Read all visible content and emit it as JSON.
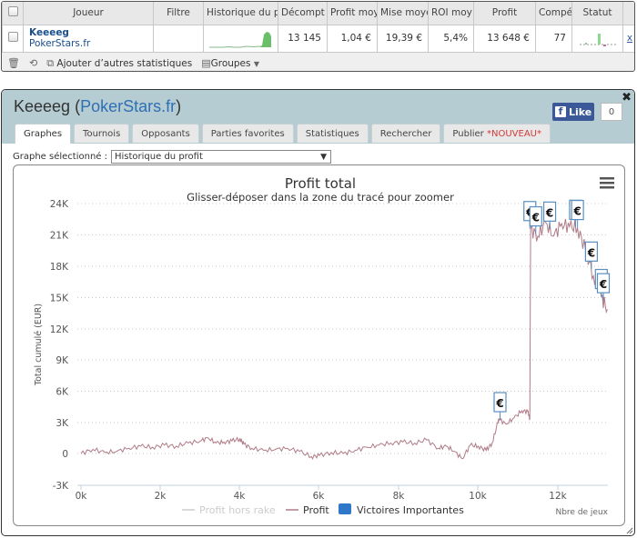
{
  "stats_table": {
    "columns": [
      "Joueur",
      "Filtre",
      "Historique du p",
      "Décompt",
      "Profit moy",
      "Mise moye",
      "ROI moy",
      "Profit",
      "Compé",
      "Statut"
    ],
    "row": {
      "player": "Keeeeg",
      "site": "PokerStars.fr",
      "filter": "",
      "count": "13 145",
      "avg_profit": "1,04 €",
      "avg_stake": "19,39 €",
      "avg_roi": "5,4%",
      "profit": "13 648 €",
      "competence": "77",
      "remove": "x"
    }
  },
  "toolbar": {
    "add_stats_label": "Ajouter d’autres statistiques",
    "groups_label": "Groupes"
  },
  "dialog": {
    "title_player": "Keeeeg",
    "title_open": " (",
    "title_site": "PokerStars.fr",
    "title_close": ")",
    "fb_like_label": "Like",
    "fb_like_count": "0",
    "close_label": "✖",
    "tabs": [
      {
        "label": "Graphes",
        "active": true
      },
      {
        "label": "Tournois"
      },
      {
        "label": "Opposants"
      },
      {
        "label": "Parties favorites"
      },
      {
        "label": "Statistiques"
      },
      {
        "label": "Rechercher"
      },
      {
        "label": "Publier ",
        "badge": "*NOUVEAU*"
      }
    ],
    "graph_select_label": "Graphe sélectionné :",
    "graph_select_value": "Historique du profit"
  },
  "chart_data": {
    "type": "line",
    "title": "Profit total",
    "subtitle": "Glisser-déposer dans la zone du tracé pour zoomer",
    "xlabel": "Nbre de jeux",
    "ylabel": "Total cumulé (EUR)",
    "x_ticks": [
      "0k",
      "2k",
      "4k",
      "6k",
      "8k",
      "10k",
      "12k"
    ],
    "y_ticks": [
      "24K",
      "21K",
      "18K",
      "15K",
      "12K",
      "9K",
      "6K",
      "3K",
      "0",
      "-3K"
    ],
    "ylim": [
      -3000,
      24000
    ],
    "xlim": [
      0,
      13300
    ],
    "grid": true,
    "legend": [
      "Profit hors rake",
      "Profit",
      "Victoires Importantes"
    ],
    "legend_position": "bottom",
    "series": [
      {
        "name": "Profit",
        "color": "#b07a86",
        "x": [
          0,
          300,
          600,
          900,
          1200,
          1500,
          1800,
          2100,
          2400,
          2700,
          3000,
          3200,
          3400,
          3600,
          3800,
          4000,
          4100,
          4300,
          4600,
          4900,
          5200,
          5500,
          5800,
          6000,
          6300,
          6600,
          6900,
          7200,
          7500,
          7800,
          8100,
          8400,
          8700,
          9000,
          9200,
          9400,
          9600,
          9800,
          10000,
          10200,
          10350,
          10500,
          10520,
          10700,
          10900,
          11100,
          11250,
          11300,
          11320,
          11500,
          11700,
          11900,
          12100,
          12300,
          12500,
          12700,
          12900,
          13100,
          13250
        ],
        "y": [
          0,
          400,
          100,
          200,
          500,
          700,
          600,
          800,
          700,
          1000,
          1200,
          1500,
          1000,
          1100,
          1200,
          1400,
          900,
          500,
          300,
          400,
          500,
          200,
          -300,
          -200,
          100,
          0,
          300,
          600,
          800,
          1000,
          1100,
          1000,
          1300,
          500,
          700,
          200,
          -500,
          800,
          700,
          300,
          1000,
          3000,
          3300,
          2800,
          3400,
          4100,
          4000,
          3300,
          21500,
          20800,
          22100,
          20800,
          22000,
          21700,
          21600,
          19500,
          17000,
          15000,
          13800
        ]
      },
      {
        "name": "Victoires Importantes",
        "color": "#2f78c9",
        "markers_x": [
          10550,
          11300,
          11450,
          11800,
          12450,
          12500,
          12850,
          13100,
          13150
        ],
        "marker_label": "€"
      }
    ]
  }
}
